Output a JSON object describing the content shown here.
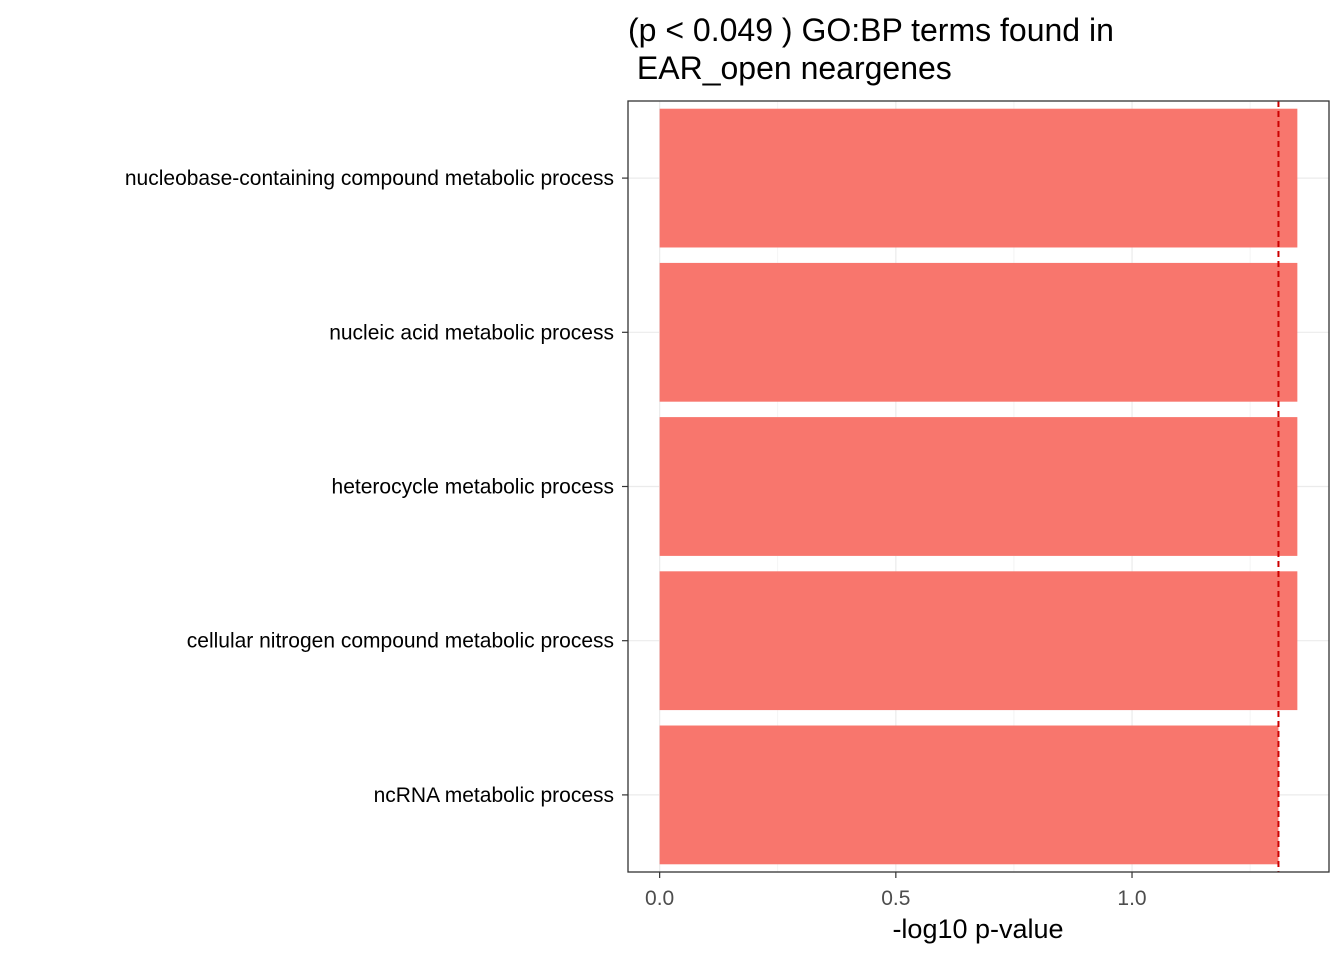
{
  "chart_data": {
    "type": "bar",
    "orientation": "horizontal",
    "title_lines": [
      "(p < 0.049 ) GO:BP terms found in",
      " EAR_open neargenes"
    ],
    "xlabel": "-log10 p-value",
    "ylabel": "",
    "categories": [
      "nucleobase-containing compound metabolic process",
      "nucleic acid metabolic process",
      "heterocycle metabolic process",
      "cellular nitrogen compound metabolic process",
      "ncRNA metabolic process"
    ],
    "values": [
      1.35,
      1.35,
      1.35,
      1.35,
      1.31
    ],
    "xlim": [
      -0.067,
      1.417
    ],
    "xticks": [
      0.0,
      0.5,
      1.0
    ],
    "xtick_labels": [
      "0.0",
      "0.5",
      "1.0"
    ],
    "threshold_line": 1.31,
    "bar_color": "#F8766D",
    "threshold_color": "#CC0000",
    "grid": true,
    "legend": "none"
  }
}
